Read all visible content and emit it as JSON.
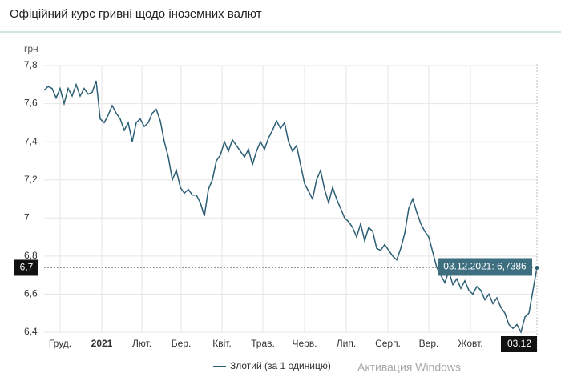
{
  "chart_data": {
    "type": "line",
    "title": "Офіційний курс гривні щодо іноземних валют",
    "y_label": "грн",
    "series": [
      {
        "name": "Злотий (за 1 одиницю)",
        "color": "#2c5f75",
        "values": [
          7.67,
          7.69,
          7.68,
          7.63,
          7.68,
          7.6,
          7.68,
          7.64,
          7.7,
          7.64,
          7.68,
          7.65,
          7.66,
          7.72,
          7.52,
          7.5,
          7.54,
          7.59,
          7.55,
          7.52,
          7.46,
          7.5,
          7.4,
          7.5,
          7.52,
          7.48,
          7.5,
          7.55,
          7.57,
          7.51,
          7.4,
          7.32,
          7.2,
          7.25,
          7.16,
          7.13,
          7.15,
          7.12,
          7.12,
          7.08,
          7.01,
          7.15,
          7.2,
          7.3,
          7.33,
          7.4,
          7.35,
          7.41,
          7.38,
          7.35,
          7.32,
          7.36,
          7.28,
          7.35,
          7.4,
          7.36,
          7.42,
          7.46,
          7.51,
          7.47,
          7.5,
          7.4,
          7.35,
          7.38,
          7.28,
          7.18,
          7.14,
          7.1,
          7.2,
          7.25,
          7.15,
          7.08,
          7.16,
          7.1,
          7.05,
          7.0,
          6.98,
          6.95,
          6.9,
          6.97,
          6.88,
          6.95,
          6.93,
          6.84,
          6.83,
          6.86,
          6.83,
          6.8,
          6.78,
          6.84,
          6.92,
          7.05,
          7.1,
          7.03,
          6.97,
          6.93,
          6.9,
          6.82,
          6.74,
          6.7,
          6.66,
          6.72,
          6.65,
          6.68,
          6.63,
          6.67,
          6.62,
          6.6,
          6.64,
          6.62,
          6.57,
          6.6,
          6.55,
          6.58,
          6.53,
          6.5,
          6.44,
          6.42,
          6.44,
          6.4,
          6.48,
          6.5,
          6.62,
          6.7386
        ]
      }
    ],
    "xlim": [
      0,
      123
    ],
    "xticks": [
      {
        "value": 4,
        "label": "Груд."
      },
      {
        "value": 14.4,
        "label": "2021"
      },
      {
        "value": 24.4,
        "label": "Лют."
      },
      {
        "value": 34.2,
        "label": "Бер."
      },
      {
        "value": 44.4,
        "label": "Квіт."
      },
      {
        "value": 54.6,
        "label": "Трав."
      },
      {
        "value": 65,
        "label": "Черв."
      },
      {
        "value": 75.4,
        "label": "Лип."
      },
      {
        "value": 85.8,
        "label": "Серп."
      },
      {
        "value": 96,
        "label": "Вер."
      },
      {
        "value": 106.4,
        "label": "Жовт."
      }
    ],
    "ylim": [
      6.4,
      7.8
    ],
    "yticks": [
      {
        "value": 7.8,
        "label": "7,8"
      },
      {
        "value": 7.6,
        "label": "7,6"
      },
      {
        "value": 7.4,
        "label": "7,4"
      },
      {
        "value": 7.2,
        "label": "7,2"
      },
      7,
      {
        "value": 6.8,
        "label": "6,8"
      },
      {
        "value": 6.6,
        "label": "6,6"
      },
      {
        "value": 6.4,
        "label": "6,4"
      }
    ],
    "grid": true,
    "cursor": {
      "x_label": "03.12",
      "y_label": "6,7",
      "tooltip": "03.12.2021: 6,7386"
    },
    "watermark": "Активация Windows"
  }
}
